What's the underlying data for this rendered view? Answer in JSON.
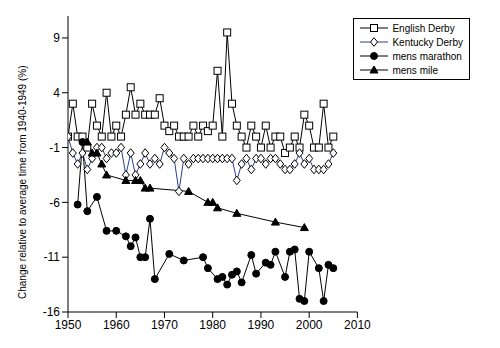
{
  "chart_data": {
    "type": "line",
    "y_label": "Change relative to average time from 1940-1949 (%)",
    "xlim": [
      1950,
      2010
    ],
    "xticks": [
      1950,
      1960,
      1970,
      1980,
      1990,
      2000,
      2010
    ],
    "ylim": [
      -16,
      11
    ],
    "yticks": [
      9,
      4,
      -1,
      -6,
      -11,
      -16
    ],
    "legend": "upper right",
    "series": [
      {
        "name": "English Derby",
        "color": "#000000",
        "marker": "open_square",
        "x": [
          1950,
          1951,
          1952,
          1953,
          1954,
          1955,
          1956,
          1957,
          1958,
          1959,
          1960,
          1961,
          1962,
          1963,
          1964,
          1965,
          1966,
          1967,
          1968,
          1969,
          1970,
          1971,
          1972,
          1973,
          1974,
          1975,
          1976,
          1977,
          1978,
          1979,
          1980,
          1981,
          1982,
          1983,
          1984,
          1985,
          1986,
          1987,
          1988,
          1989,
          1990,
          1991,
          1992,
          1993,
          1994,
          1995,
          1996,
          1997,
          1998,
          1999,
          2000,
          2001,
          2002,
          2003,
          2004,
          2005
        ],
        "values": [
          0,
          3,
          0,
          0,
          -1,
          3,
          1,
          0,
          4,
          0,
          1,
          0,
          2,
          4.5,
          2,
          3,
          2,
          2,
          2,
          3.5,
          1,
          0.5,
          1,
          0,
          0,
          0,
          1,
          0,
          1,
          0.5,
          1,
          6,
          0,
          9.5,
          3,
          1,
          0,
          -1,
          1,
          0,
          -1,
          1,
          -1,
          0,
          0,
          -1.5,
          -1,
          0,
          -1,
          2,
          1,
          -1,
          -1,
          3,
          -1,
          0
        ]
      },
      {
        "name": "Kentucky Derby",
        "color": "#2b3f8f",
        "marker": "open_diamond",
        "x": [
          1950,
          1951,
          1952,
          1953,
          1954,
          1955,
          1956,
          1957,
          1958,
          1959,
          1960,
          1961,
          1962,
          1963,
          1964,
          1965,
          1966,
          1967,
          1968,
          1969,
          1970,
          1971,
          1972,
          1973,
          1974,
          1975,
          1976,
          1977,
          1978,
          1979,
          1980,
          1981,
          1982,
          1983,
          1984,
          1985,
          1986,
          1987,
          1988,
          1989,
          1990,
          1991,
          1992,
          1993,
          1994,
          1995,
          1996,
          1997,
          1998,
          1999,
          2000,
          2001,
          2002,
          2003,
          2004,
          2005
        ],
        "values": [
          0,
          -1.5,
          -2.5,
          -1.5,
          -3,
          -2,
          -1,
          -1,
          -2,
          -1.5,
          -1.5,
          -1,
          -3.5,
          -1.5,
          -3.5,
          -2.5,
          -1.5,
          -2.5,
          -2,
          -2.5,
          -1,
          -1.5,
          -2,
          -5,
          -2,
          -2.5,
          -2,
          -2,
          -2,
          -2,
          -2,
          -2,
          -2,
          -2,
          -2,
          -4,
          -2.5,
          -2,
          -3,
          -2,
          -2,
          -2.5,
          -2,
          -2,
          -2.5,
          -3,
          -3,
          -2.5,
          -1.5,
          -2.5,
          -2,
          -3,
          -3,
          -3,
          -2.5,
          -1.5
        ]
      },
      {
        "name": "mens marathon",
        "color": "#000000",
        "marker": "circle",
        "x": [
          1952,
          1953,
          1954,
          1956,
          1958,
          1960,
          1962,
          1963,
          1964,
          1965,
          1966,
          1967,
          1968,
          1971,
          1974,
          1978,
          1979,
          1981,
          1982,
          1983,
          1984,
          1985,
          1986,
          1988,
          1989,
          1991,
          1992,
          1993,
          1995,
          1996,
          1997,
          1998,
          1999,
          2000,
          2002,
          2003,
          2004,
          2005
        ],
        "values": [
          -6.2,
          -0.5,
          -6.8,
          -5.5,
          -8.6,
          -8.6,
          -9.1,
          -10,
          -9.2,
          -11,
          -11,
          -7.5,
          -13,
          -10.7,
          -11.3,
          -11,
          -12,
          -13,
          -12.8,
          -13.5,
          -12.6,
          -12.3,
          -13.3,
          -10.8,
          -12.5,
          -11.5,
          -11.7,
          -10.5,
          -12.8,
          -10.5,
          -10.3,
          -14.8,
          -15,
          -10.5,
          -12,
          -15,
          -11.7,
          -12
        ]
      },
      {
        "name": "mens mile",
        "color": "#000000",
        "marker": "triangle",
        "x": [
          1954,
          1955,
          1956,
          1957,
          1958,
          1962,
          1964,
          1965,
          1966,
          1967,
          1975,
          1979,
          1980,
          1981,
          1985,
          1993,
          1999
        ],
        "values": [
          -0.5,
          -1.5,
          -1.5,
          -2.5,
          -3.5,
          -4,
          -4,
          -4,
          -4.7,
          -4.7,
          -5,
          -6,
          -6,
          -6.5,
          -7,
          -7.8,
          -8.3
        ]
      }
    ]
  }
}
